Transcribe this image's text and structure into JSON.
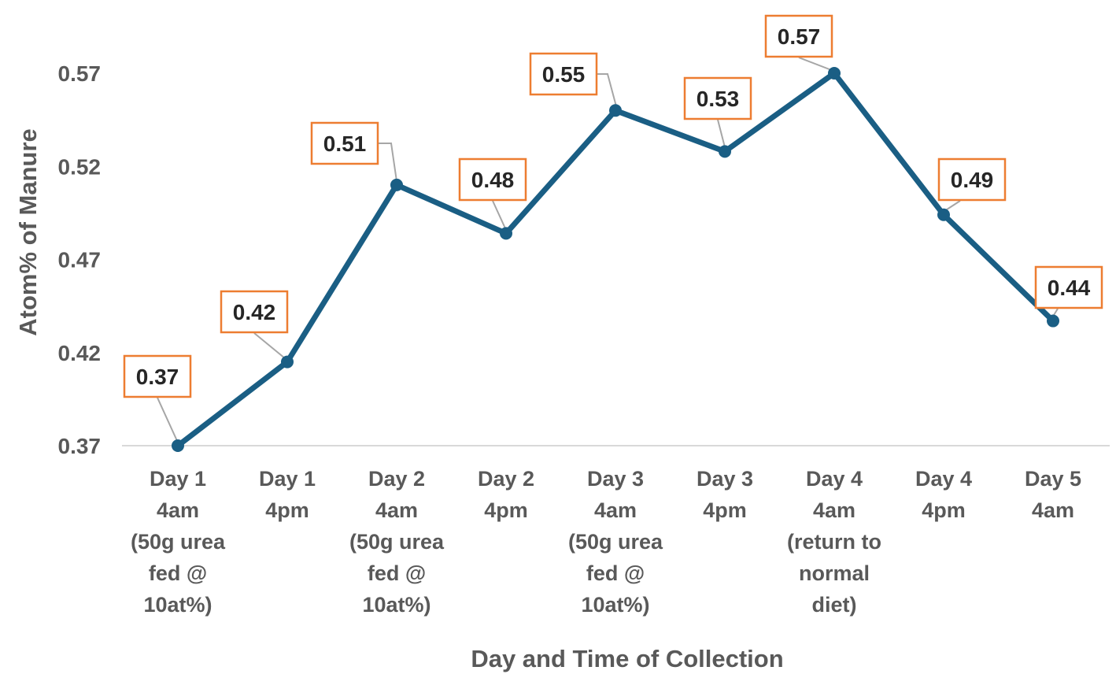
{
  "chart_data": {
    "type": "line",
    "title": "",
    "xlabel": "Day and Time of Collection",
    "ylabel": "Atom% of Manure",
    "ylim": [
      0.37,
      0.57
    ],
    "yticks": [
      "0.37",
      "0.42",
      "0.47",
      "0.52",
      "0.57"
    ],
    "grid": false,
    "legend": "none",
    "categories": [
      [
        "Day 1",
        "4am",
        "(50g urea",
        "fed @",
        "10at%)"
      ],
      [
        "Day 1",
        "4pm"
      ],
      [
        "Day 2",
        "4am",
        "(50g urea",
        "fed @",
        "10at%)"
      ],
      [
        "Day 2",
        "4pm"
      ],
      [
        "Day 3",
        "4am",
        "(50g urea",
        "fed @",
        "10at%)"
      ],
      [
        "Day 3",
        "4pm"
      ],
      [
        "Day 4",
        "4am",
        "(return to",
        "normal",
        "diet)"
      ],
      [
        "Day 4",
        "4pm"
      ],
      [
        "Day 5",
        "4am"
      ]
    ],
    "series": [
      {
        "values": [
          0.37,
          0.415,
          0.51,
          0.484,
          0.55,
          0.528,
          0.57,
          0.494,
          0.437
        ],
        "data_labels": [
          "0.37",
          "0.42",
          "0.51",
          "0.48",
          "0.55",
          "0.53",
          "0.57",
          "0.49",
          "0.44"
        ],
        "color": "#1a5e84"
      }
    ],
    "label_border_color": "#ed7d31",
    "leader_line_color": "#a6a6a6",
    "axis_line_color": "#d9d9d9"
  }
}
